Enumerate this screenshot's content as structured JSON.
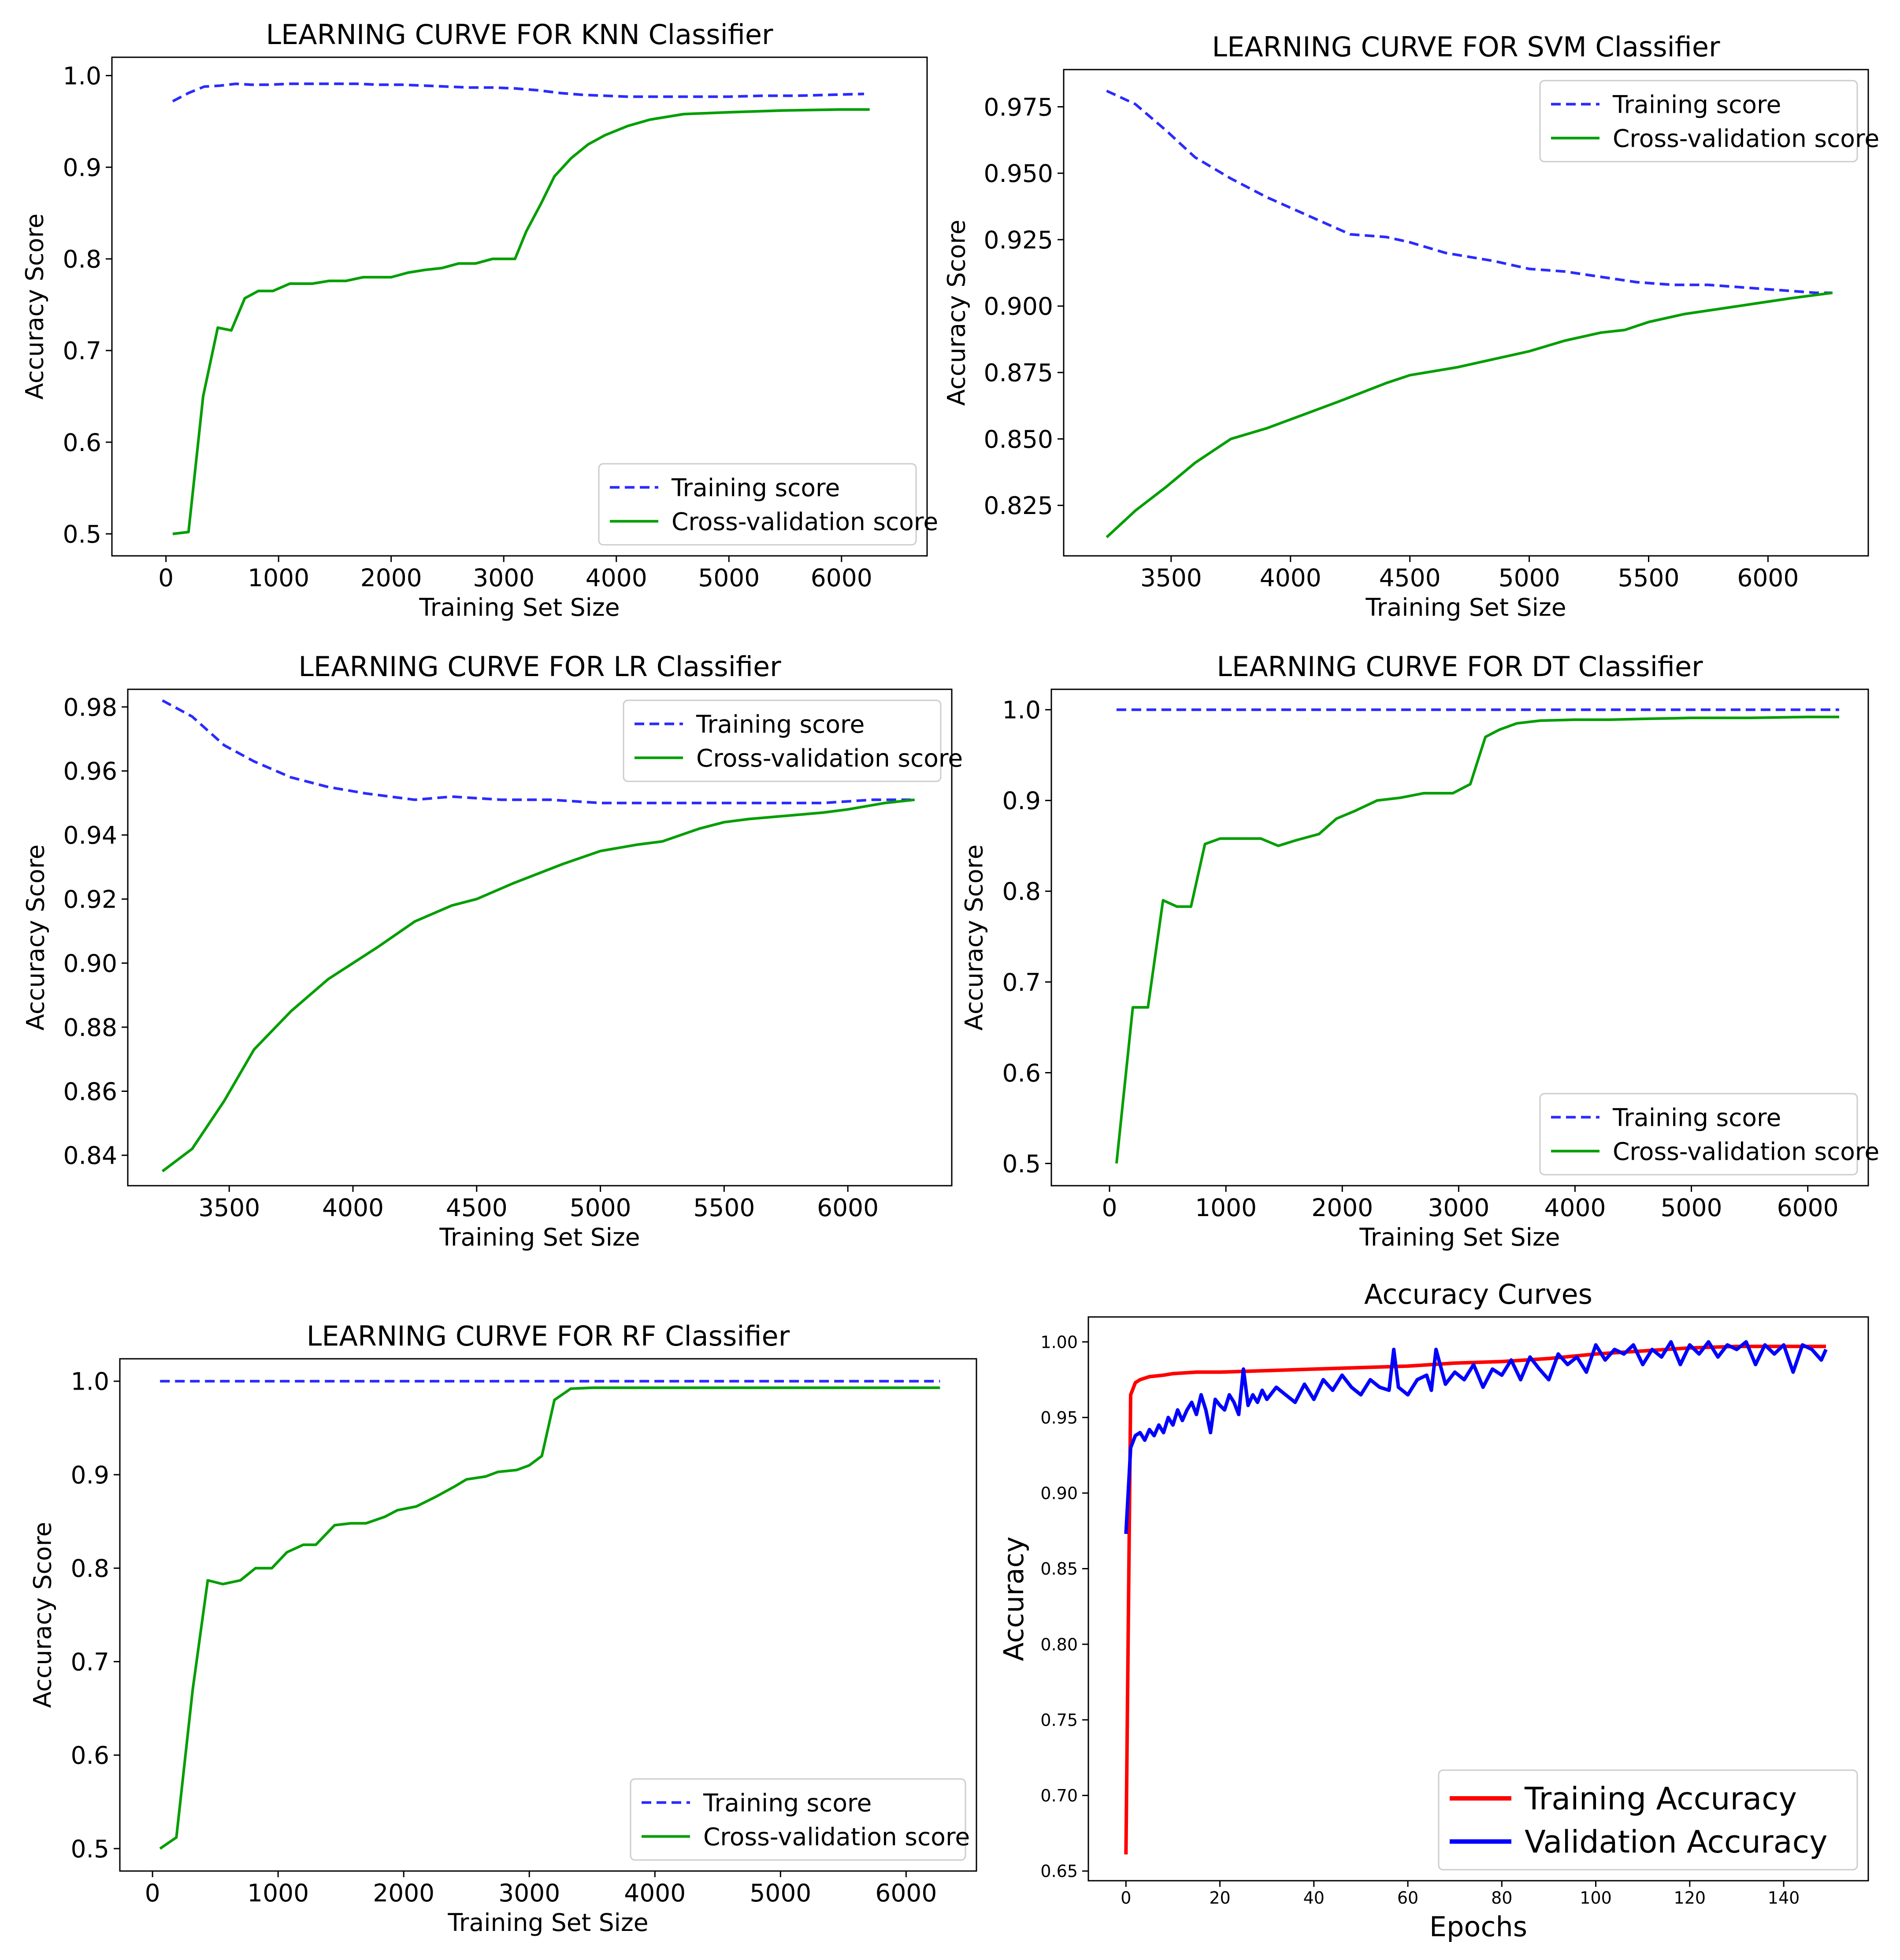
{
  "chart_data": [
    {
      "id": "knn",
      "type": "line",
      "title": "LEARNING CURVE FOR KNN Classifier",
      "xlabel": "Training Set Size",
      "ylabel": "Accuracy Score",
      "xlim": [
        -480,
        6760
      ],
      "ylim": [
        0.476,
        1.02
      ],
      "xticks": [
        0,
        1000,
        2000,
        3000,
        4000,
        5000,
        6000
      ],
      "xtick_labels": [
        "0",
        "1000",
        "2000",
        "3000",
        "4000",
        "5000",
        "6000"
      ],
      "yticks": [
        0.5,
        0.6,
        0.7,
        0.8,
        0.9,
        1.0
      ],
      "ytick_labels": [
        "0.5",
        "0.6",
        "0.7",
        "0.8",
        "0.9",
        "1.0"
      ],
      "legend_position": "lower-right",
      "series": [
        {
          "name": "Training score",
          "color": "#2b2bff",
          "dash": true,
          "x": [
            60,
            200,
            340,
            480,
            620,
            760,
            900,
            1100,
            1300,
            1500,
            1700,
            1900,
            2100,
            2300,
            2500,
            2700,
            2900,
            3100,
            3300,
            3500,
            3700,
            3900,
            4100,
            4400,
            4700,
            5000,
            5300,
            5600,
            5900,
            6200
          ],
          "y": [
            0.972,
            0.981,
            0.988,
            0.989,
            0.991,
            0.99,
            0.99,
            0.991,
            0.991,
            0.991,
            0.991,
            0.99,
            0.99,
            0.989,
            0.988,
            0.987,
            0.987,
            0.986,
            0.984,
            0.981,
            0.979,
            0.978,
            0.977,
            0.977,
            0.977,
            0.977,
            0.978,
            0.978,
            0.979,
            0.98
          ]
        },
        {
          "name": "Cross-validation score",
          "color": "#009e00",
          "dash": false,
          "x": [
            60,
            200,
            330,
            460,
            580,
            700,
            820,
            950,
            1100,
            1300,
            1450,
            1600,
            1750,
            2000,
            2150,
            2300,
            2450,
            2600,
            2750,
            2900,
            3000,
            3100,
            3200,
            3330,
            3450,
            3600,
            3750,
            3900,
            4100,
            4300,
            4600,
            5000,
            5500,
            6000,
            6250
          ],
          "y": [
            0.5,
            0.502,
            0.65,
            0.725,
            0.722,
            0.757,
            0.765,
            0.765,
            0.773,
            0.773,
            0.776,
            0.776,
            0.78,
            0.78,
            0.785,
            0.788,
            0.79,
            0.795,
            0.795,
            0.8,
            0.8,
            0.8,
            0.83,
            0.86,
            0.89,
            0.91,
            0.925,
            0.935,
            0.945,
            0.952,
            0.958,
            0.96,
            0.962,
            0.963,
            0.963
          ]
        }
      ]
    },
    {
      "id": "svm",
      "type": "line",
      "title": "LEARNING CURVE FOR SVM Classifier",
      "xlabel": "Training Set Size",
      "ylabel": "Accuracy Score",
      "xlim": [
        3050,
        6420
      ],
      "ylim": [
        0.806,
        0.989
      ],
      "xticks": [
        3500,
        4000,
        4500,
        5000,
        5500,
        6000
      ],
      "xtick_labels": [
        "3500",
        "4000",
        "4500",
        "5000",
        "5500",
        "6000"
      ],
      "yticks": [
        0.825,
        0.85,
        0.875,
        0.9,
        0.925,
        0.95,
        0.975
      ],
      "ytick_labels": [
        "0.825",
        "0.850",
        "0.875",
        "0.900",
        "0.925",
        "0.950",
        "0.975"
      ],
      "legend_position": "upper-right",
      "series": [
        {
          "name": "Training score",
          "color": "#2b2bff",
          "dash": true,
          "x": [
            3230,
            3350,
            3480,
            3600,
            3750,
            3900,
            4050,
            4250,
            4400,
            4500,
            4650,
            4850,
            5000,
            5150,
            5300,
            5450,
            5600,
            5750,
            5900,
            6050,
            6200,
            6270
          ],
          "y": [
            0.981,
            0.976,
            0.966,
            0.956,
            0.948,
            0.941,
            0.935,
            0.927,
            0.926,
            0.924,
            0.92,
            0.917,
            0.914,
            0.913,
            0.911,
            0.909,
            0.908,
            0.908,
            0.907,
            0.906,
            0.905,
            0.905
          ]
        },
        {
          "name": "Cross-validation score",
          "color": "#009e00",
          "dash": false,
          "x": [
            3230,
            3350,
            3480,
            3600,
            3750,
            3900,
            4050,
            4200,
            4400,
            4500,
            4700,
            4850,
            5000,
            5150,
            5300,
            5400,
            5500,
            5650,
            5800,
            5950,
            6100,
            6270
          ],
          "y": [
            0.813,
            0.823,
            0.832,
            0.841,
            0.85,
            0.854,
            0.859,
            0.864,
            0.871,
            0.874,
            0.877,
            0.88,
            0.883,
            0.887,
            0.89,
            0.891,
            0.894,
            0.897,
            0.899,
            0.901,
            0.903,
            0.905
          ]
        }
      ]
    },
    {
      "id": "lr",
      "type": "line",
      "title": "LEARNING CURVE FOR LR Classifier",
      "xlabel": "Training Set Size",
      "ylabel": "Accuracy Score",
      "xlim": [
        3090,
        6420
      ],
      "ylim": [
        0.8305,
        0.9855
      ],
      "xticks": [
        3500,
        4000,
        4500,
        5000,
        5500,
        6000
      ],
      "xtick_labels": [
        "3500",
        "4000",
        "4500",
        "5000",
        "5500",
        "6000"
      ],
      "yticks": [
        0.84,
        0.86,
        0.88,
        0.9,
        0.92,
        0.94,
        0.96,
        0.98
      ],
      "ytick_labels": [
        "0.84",
        "0.86",
        "0.88",
        "0.90",
        "0.92",
        "0.94",
        "0.96",
        "0.98"
      ],
      "legend_position": "upper-right",
      "series": [
        {
          "name": "Training score",
          "color": "#2b2bff",
          "dash": true,
          "x": [
            3230,
            3350,
            3480,
            3600,
            3750,
            3900,
            4050,
            4250,
            4400,
            4600,
            4800,
            5000,
            5150,
            5300,
            5500,
            5700,
            5900,
            6100,
            6270
          ],
          "y": [
            0.982,
            0.977,
            0.968,
            0.963,
            0.958,
            0.955,
            0.953,
            0.951,
            0.952,
            0.951,
            0.951,
            0.95,
            0.95,
            0.95,
            0.95,
            0.95,
            0.95,
            0.951,
            0.951
          ]
        },
        {
          "name": "Cross-validation score",
          "color": "#009e00",
          "dash": false,
          "x": [
            3230,
            3350,
            3480,
            3600,
            3750,
            3900,
            4000,
            4100,
            4250,
            4400,
            4500,
            4650,
            4750,
            4850,
            5000,
            5150,
            5250,
            5400,
            5500,
            5600,
            5750,
            5900,
            6000,
            6150,
            6270
          ],
          "y": [
            0.835,
            0.842,
            0.857,
            0.873,
            0.885,
            0.895,
            0.9,
            0.905,
            0.913,
            0.918,
            0.92,
            0.925,
            0.928,
            0.931,
            0.935,
            0.937,
            0.938,
            0.942,
            0.944,
            0.945,
            0.946,
            0.947,
            0.948,
            0.95,
            0.951
          ]
        }
      ]
    },
    {
      "id": "dt",
      "type": "line",
      "title": "LEARNING CURVE FOR DT Classifier",
      "xlabel": "Training Set Size",
      "ylabel": "Accuracy Score",
      "xlim": [
        -500,
        6520
      ],
      "ylim": [
        0.4755,
        1.0225
      ],
      "xticks": [
        0,
        1000,
        2000,
        3000,
        4000,
        5000,
        6000
      ],
      "xtick_labels": [
        "0",
        "1000",
        "2000",
        "3000",
        "4000",
        "5000",
        "6000"
      ],
      "yticks": [
        0.5,
        0.6,
        0.7,
        0.8,
        0.9,
        1.0
      ],
      "ytick_labels": [
        "0.5",
        "0.6",
        "0.7",
        "0.8",
        "0.9",
        "1.0"
      ],
      "legend_position": "lower-right",
      "series": [
        {
          "name": "Training score",
          "color": "#2b2bff",
          "dash": true,
          "x": [
            60,
            6270
          ],
          "y": [
            1.0,
            1.0
          ]
        },
        {
          "name": "Cross-validation score",
          "color": "#009e00",
          "dash": false,
          "x": [
            60,
            200,
            330,
            460,
            580,
            700,
            820,
            950,
            1100,
            1300,
            1450,
            1600,
            1800,
            1950,
            2100,
            2300,
            2500,
            2700,
            2950,
            3100,
            3230,
            3350,
            3500,
            3700,
            4000,
            4300,
            4600,
            5000,
            5500,
            6000,
            6270
          ],
          "y": [
            0.5,
            0.672,
            0.672,
            0.79,
            0.783,
            0.783,
            0.852,
            0.858,
            0.858,
            0.858,
            0.85,
            0.856,
            0.863,
            0.88,
            0.888,
            0.9,
            0.903,
            0.908,
            0.908,
            0.918,
            0.97,
            0.978,
            0.985,
            0.988,
            0.989,
            0.989,
            0.99,
            0.991,
            0.991,
            0.992,
            0.992
          ]
        }
      ]
    },
    {
      "id": "rf",
      "type": "line",
      "title": "LEARNING CURVE FOR RF Classifier",
      "xlabel": "Training Set Size",
      "ylabel": "Accuracy Score",
      "xlim": [
        -260,
        6560
      ],
      "ylim": [
        0.476,
        1.024
      ],
      "xticks": [
        0,
        1000,
        2000,
        3000,
        4000,
        5000,
        6000
      ],
      "xtick_labels": [
        "0",
        "1000",
        "2000",
        "3000",
        "4000",
        "5000",
        "6000"
      ],
      "yticks": [
        0.5,
        0.6,
        0.7,
        0.8,
        0.9,
        1.0
      ],
      "ytick_labels": [
        "0.5",
        "0.6",
        "0.7",
        "0.8",
        "0.9",
        "1.0"
      ],
      "legend_position": "lower-right",
      "series": [
        {
          "name": "Training score",
          "color": "#2b2bff",
          "dash": true,
          "x": [
            60,
            6270
          ],
          "y": [
            1.0,
            1.0
          ]
        },
        {
          "name": "Cross-validation score",
          "color": "#009e00",
          "dash": false,
          "x": [
            60,
            190,
            320,
            440,
            560,
            700,
            820,
            950,
            1070,
            1200,
            1300,
            1450,
            1580,
            1700,
            1850,
            1950,
            2100,
            2250,
            2400,
            2500,
            2650,
            2750,
            2900,
            3000,
            3100,
            3200,
            3330,
            3500,
            4000,
            5000,
            6000,
            6270
          ],
          "y": [
            0.5,
            0.512,
            0.67,
            0.787,
            0.783,
            0.787,
            0.8,
            0.8,
            0.817,
            0.825,
            0.825,
            0.846,
            0.848,
            0.848,
            0.855,
            0.862,
            0.866,
            0.876,
            0.887,
            0.895,
            0.898,
            0.903,
            0.905,
            0.91,
            0.92,
            0.98,
            0.992,
            0.993,
            0.993,
            0.993,
            0.993,
            0.993
          ]
        }
      ]
    },
    {
      "id": "acc",
      "type": "line",
      "title": "Accuracy Curves",
      "xlabel": "Epochs",
      "ylabel": "Accuracy",
      "xlim": [
        -8,
        158
      ],
      "ylim": [
        0.6436,
        1.0165
      ],
      "xticks": [
        0,
        20,
        40,
        60,
        80,
        100,
        120,
        140
      ],
      "xtick_labels": [
        "0",
        "20",
        "40",
        "60",
        "80",
        "100",
        "120",
        "140"
      ],
      "yticks": [
        0.65,
        0.7,
        0.75,
        0.8,
        0.85,
        0.9,
        0.95,
        1.0
      ],
      "ytick_labels": [
        "0.65",
        "0.70",
        "0.75",
        "0.80",
        "0.85",
        "0.90",
        "0.95",
        "1.00"
      ],
      "legend_position": "lower-right",
      "series": [
        {
          "name": "Training Accuracy",
          "color": "#ff0000",
          "dash": false,
          "x": [
            0,
            1,
            2,
            3,
            5,
            8,
            10,
            15,
            20,
            30,
            40,
            50,
            60,
            70,
            80,
            90,
            100,
            110,
            120,
            130,
            140,
            149
          ],
          "y": [
            0.661,
            0.965,
            0.973,
            0.975,
            0.977,
            0.978,
            0.979,
            0.98,
            0.98,
            0.981,
            0.982,
            0.983,
            0.984,
            0.986,
            0.987,
            0.989,
            0.992,
            0.994,
            0.996,
            0.997,
            0.997,
            0.997
          ]
        },
        {
          "name": "Validation Accuracy",
          "color": "#0000ff",
          "dash": false,
          "x": [
            0,
            1,
            2,
            3,
            4,
            5,
            6,
            7,
            8,
            9,
            10,
            11,
            12,
            13,
            14,
            15,
            16,
            17,
            18,
            19,
            20,
            21,
            22,
            23,
            24,
            25,
            26,
            27,
            28,
            29,
            30,
            32,
            34,
            36,
            38,
            40,
            42,
            44,
            46,
            48,
            50,
            52,
            54,
            56,
            57,
            58,
            60,
            62,
            64,
            65,
            66,
            68,
            70,
            72,
            74,
            76,
            78,
            80,
            82,
            84,
            86,
            88,
            90,
            92,
            94,
            96,
            98,
            100,
            102,
            104,
            106,
            108,
            110,
            112,
            114,
            116,
            118,
            120,
            122,
            124,
            126,
            128,
            130,
            132,
            134,
            136,
            138,
            140,
            142,
            144,
            146,
            148,
            149
          ],
          "y": [
            0.873,
            0.93,
            0.938,
            0.94,
            0.935,
            0.942,
            0.938,
            0.945,
            0.94,
            0.95,
            0.945,
            0.955,
            0.948,
            0.955,
            0.96,
            0.952,
            0.965,
            0.955,
            0.94,
            0.962,
            0.958,
            0.955,
            0.965,
            0.96,
            0.952,
            0.982,
            0.958,
            0.965,
            0.96,
            0.968,
            0.962,
            0.97,
            0.965,
            0.96,
            0.972,
            0.962,
            0.975,
            0.968,
            0.978,
            0.97,
            0.965,
            0.975,
            0.97,
            0.968,
            0.995,
            0.97,
            0.965,
            0.975,
            0.978,
            0.968,
            0.995,
            0.972,
            0.98,
            0.975,
            0.985,
            0.97,
            0.982,
            0.978,
            0.988,
            0.975,
            0.99,
            0.982,
            0.975,
            0.992,
            0.985,
            0.99,
            0.98,
            0.998,
            0.988,
            0.995,
            0.992,
            0.998,
            0.985,
            0.995,
            0.99,
            1.0,
            0.985,
            0.998,
            0.992,
            1.0,
            0.99,
            0.998,
            0.995,
            1.0,
            0.985,
            0.998,
            0.992,
            0.998,
            0.98,
            0.998,
            0.995,
            0.988,
            0.995
          ]
        }
      ]
    }
  ]
}
